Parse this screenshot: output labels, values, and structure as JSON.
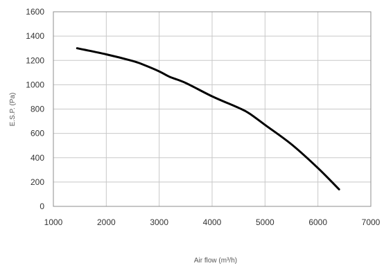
{
  "chart_data": {
    "type": "line",
    "xlabel": "Air flow (m³/h)",
    "ylabel": "E.S.P. (Pa)",
    "xlim": [
      1000,
      7000
    ],
    "ylim": [
      0,
      1600
    ],
    "x_ticks": [
      1000,
      2000,
      3000,
      4000,
      5000,
      6000,
      7000
    ],
    "y_ticks": [
      0,
      200,
      400,
      600,
      800,
      1000,
      1200,
      1400,
      1600
    ],
    "grid": true,
    "series": [
      {
        "x": [
          1450,
          2000,
          2500,
          2700,
          3000,
          3200,
          3500,
          4000,
          4500,
          4700,
          5000,
          5500,
          6000,
          6400
        ],
        "values": [
          1300,
          1250,
          1195,
          1165,
          1110,
          1065,
          1015,
          905,
          810,
          765,
          670,
          510,
          315,
          140
        ]
      }
    ]
  }
}
